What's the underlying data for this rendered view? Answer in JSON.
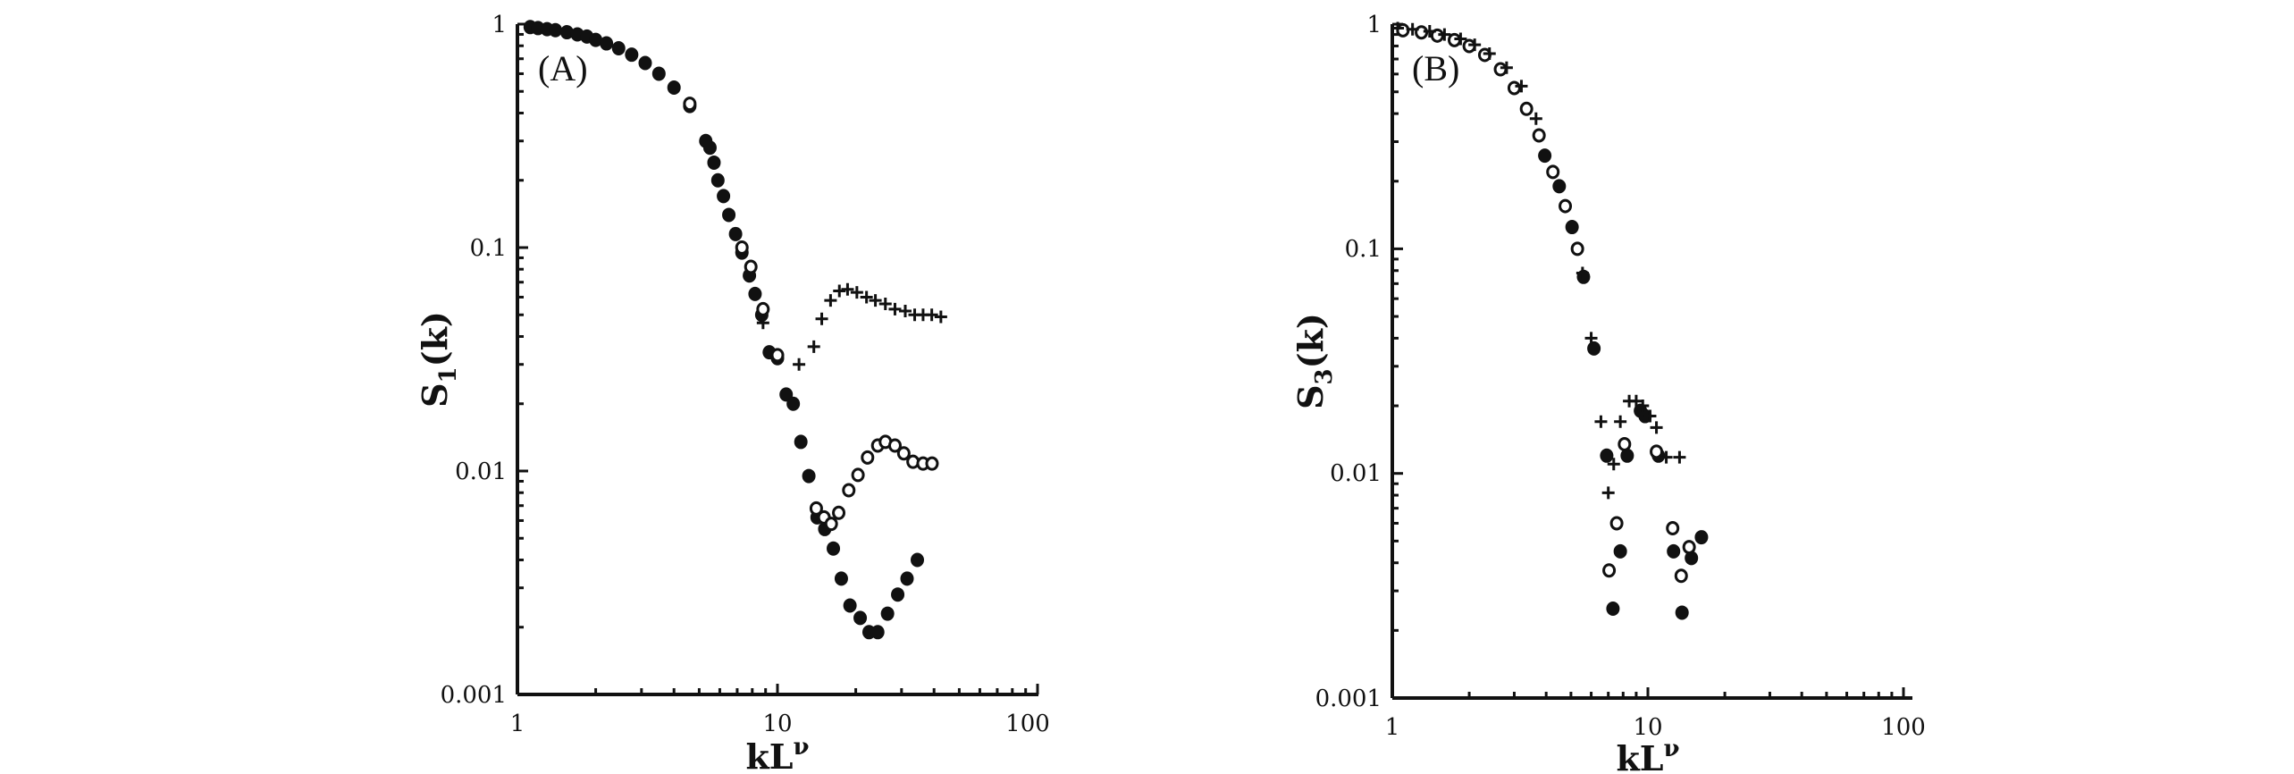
{
  "chart_data": [
    {
      "type": "scatter",
      "panel_label": "(A)",
      "xlabel_base": "kL",
      "xlabel_sup": "ν",
      "ylabel_base": "S",
      "ylabel_sub": "1",
      "ylabel_tail": "(k)",
      "x_scale": "log",
      "y_scale": "log",
      "xlim": [
        1,
        100
      ],
      "ylim": [
        0.001,
        1
      ],
      "x_ticks": [
        "1",
        "10",
        "100"
      ],
      "y_ticks": [
        "1",
        "0.1",
        "0.01",
        "0.001"
      ],
      "grid": false,
      "series": [
        {
          "marker": "filled-circle",
          "points": [
            [
              1.12,
              0.97
            ],
            [
              1.2,
              0.96
            ],
            [
              1.3,
              0.95
            ],
            [
              1.4,
              0.94
            ],
            [
              1.55,
              0.92
            ],
            [
              1.7,
              0.9
            ],
            [
              1.85,
              0.88
            ],
            [
              2.0,
              0.85
            ],
            [
              2.2,
              0.82
            ],
            [
              2.45,
              0.78
            ],
            [
              2.75,
              0.73
            ],
            [
              3.1,
              0.67
            ],
            [
              3.5,
              0.6
            ],
            [
              4.0,
              0.52
            ],
            [
              4.6,
              0.43
            ],
            [
              5.3,
              0.3
            ],
            [
              5.5,
              0.28
            ],
            [
              5.7,
              0.24
            ],
            [
              5.9,
              0.2
            ],
            [
              6.2,
              0.17
            ],
            [
              6.5,
              0.14
            ],
            [
              6.9,
              0.115
            ],
            [
              7.3,
              0.095
            ],
            [
              7.8,
              0.075
            ],
            [
              8.2,
              0.062
            ],
            [
              8.7,
              0.05
            ],
            [
              9.3,
              0.034
            ],
            [
              10.0,
              0.032
            ],
            [
              10.8,
              0.022
            ],
            [
              11.5,
              0.02
            ],
            [
              12.3,
              0.0135
            ],
            [
              13.2,
              0.0095
            ],
            [
              14.2,
              0.0062
            ],
            [
              15.2,
              0.0055
            ],
            [
              16.4,
              0.0045
            ],
            [
              17.6,
              0.0033
            ],
            [
              19.0,
              0.0025
            ],
            [
              20.8,
              0.0022
            ],
            [
              22.5,
              0.0019
            ],
            [
              24.3,
              0.0019
            ],
            [
              26.5,
              0.0023
            ],
            [
              29.0,
              0.0028
            ],
            [
              31.5,
              0.0033
            ],
            [
              34.5,
              0.004
            ]
          ]
        },
        {
          "marker": "open-circle",
          "points": [
            [
              4.6,
              0.44
            ],
            [
              7.3,
              0.1
            ],
            [
              7.9,
              0.082
            ],
            [
              8.8,
              0.053
            ],
            [
              10.0,
              0.033
            ],
            [
              14.1,
              0.0068
            ],
            [
              15.1,
              0.0062
            ],
            [
              16.1,
              0.0058
            ],
            [
              17.2,
              0.0065
            ],
            [
              18.8,
              0.0082
            ],
            [
              20.4,
              0.0096
            ],
            [
              22.2,
              0.0115
            ],
            [
              24.3,
              0.013
            ],
            [
              26.0,
              0.0135
            ],
            [
              28.3,
              0.013
            ],
            [
              30.6,
              0.012
            ],
            [
              33.2,
              0.011
            ],
            [
              36.3,
              0.0108
            ],
            [
              39.3,
              0.0108
            ]
          ]
        },
        {
          "marker": "plus",
          "points": [
            [
              8.8,
              0.046
            ],
            [
              12.1,
              0.03
            ],
            [
              13.8,
              0.036
            ],
            [
              14.8,
              0.048
            ],
            [
              16.0,
              0.058
            ],
            [
              17.3,
              0.064
            ],
            [
              18.6,
              0.065
            ],
            [
              20.2,
              0.063
            ],
            [
              22.0,
              0.06
            ],
            [
              23.8,
              0.058
            ],
            [
              26.0,
              0.056
            ],
            [
              28.3,
              0.053
            ],
            [
              31.0,
              0.052
            ],
            [
              33.7,
              0.05
            ],
            [
              36.3,
              0.05
            ],
            [
              39.2,
              0.05
            ],
            [
              42.5,
              0.049
            ]
          ]
        }
      ]
    },
    {
      "type": "scatter",
      "panel_label": "(B)",
      "xlabel_base": "kL",
      "xlabel_sup": "ν",
      "ylabel_base": "S",
      "ylabel_sub": "3",
      "ylabel_tail": "(k)",
      "x_scale": "log",
      "y_scale": "log",
      "xlim": [
        1,
        100
      ],
      "ylim": [
        0.001,
        1
      ],
      "x_ticks": [
        "1",
        "10",
        "100"
      ],
      "y_ticks": [
        "1",
        "0.1",
        "0.01",
        "0.001"
      ],
      "grid": false,
      "series": [
        {
          "marker": "filled-circle",
          "points": [
            [
              3.95,
              0.26
            ],
            [
              4.5,
              0.19
            ],
            [
              5.05,
              0.125
            ],
            [
              5.6,
              0.075
            ],
            [
              6.15,
              0.036
            ],
            [
              6.9,
              0.012
            ],
            [
              7.3,
              0.0025
            ],
            [
              7.8,
              0.0045
            ],
            [
              8.3,
              0.012
            ],
            [
              9.35,
              0.019
            ],
            [
              9.75,
              0.018
            ],
            [
              11.0,
              0.012
            ],
            [
              12.6,
              0.0045
            ],
            [
              13.6,
              0.0024
            ],
            [
              14.8,
              0.0042
            ],
            [
              16.2,
              0.0052
            ]
          ]
        },
        {
          "marker": "open-circle",
          "points": [
            [
              1.1,
              0.94
            ],
            [
              1.3,
              0.92
            ],
            [
              1.5,
              0.89
            ],
            [
              1.75,
              0.85
            ],
            [
              2.0,
              0.8
            ],
            [
              2.3,
              0.73
            ],
            [
              2.65,
              0.63
            ],
            [
              3.0,
              0.52
            ],
            [
              3.35,
              0.42
            ],
            [
              3.75,
              0.32
            ],
            [
              4.25,
              0.22
            ],
            [
              4.75,
              0.155
            ],
            [
              5.3,
              0.1
            ],
            [
              7.05,
              0.0037
            ],
            [
              7.55,
              0.006
            ],
            [
              8.1,
              0.0135
            ],
            [
              10.8,
              0.0125
            ],
            [
              12.5,
              0.0057
            ],
            [
              13.5,
              0.0035
            ],
            [
              14.5,
              0.0047
            ]
          ]
        },
        {
          "marker": "plus",
          "points": [
            [
              1.05,
              0.96
            ],
            [
              1.2,
              0.95
            ],
            [
              1.4,
              0.93
            ],
            [
              1.6,
              0.9
            ],
            [
              1.85,
              0.86
            ],
            [
              2.1,
              0.81
            ],
            [
              2.4,
              0.74
            ],
            [
              2.8,
              0.64
            ],
            [
              3.2,
              0.53
            ],
            [
              3.65,
              0.38
            ],
            [
              5.55,
              0.078
            ],
            [
              6.0,
              0.04
            ],
            [
              6.55,
              0.017
            ],
            [
              7.0,
              0.0082
            ],
            [
              7.35,
              0.011
            ],
            [
              7.8,
              0.017
            ],
            [
              8.45,
              0.021
            ],
            [
              9.0,
              0.021
            ],
            [
              9.55,
              0.02
            ],
            [
              10.2,
              0.018
            ],
            [
              10.8,
              0.016
            ],
            [
              11.8,
              0.0118
            ],
            [
              13.3,
              0.0118
            ]
          ]
        }
      ]
    }
  ]
}
